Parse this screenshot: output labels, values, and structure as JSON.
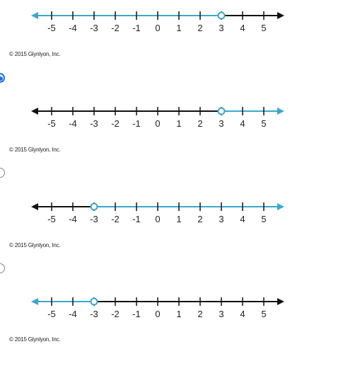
{
  "question": {
    "options": [
      {
        "selected": false,
        "show_radio": false,
        "copyright": "© 2015 Glynlyon, Inc.",
        "number_line": {
          "ticks": [
            "-5",
            "-4",
            "-3",
            "-2",
            "-1",
            "0",
            "1",
            "2",
            "3",
            "4",
            "5"
          ],
          "open_point": 3,
          "shaded_direction": "left",
          "shade_color": "#3aa8cc",
          "line_color": "#111111"
        }
      },
      {
        "selected": true,
        "show_radio": true,
        "copyright": "© 2015 Glynlyon, Inc.",
        "number_line": {
          "ticks": [
            "-5",
            "-4",
            "-3",
            "-2",
            "-1",
            "0",
            "1",
            "2",
            "3",
            "4",
            "5"
          ],
          "open_point": 3,
          "shaded_direction": "right",
          "shade_color": "#3aa8cc",
          "line_color": "#111111"
        }
      },
      {
        "selected": false,
        "show_radio": true,
        "copyright": "© 2015 Glynlyon, Inc.",
        "number_line": {
          "ticks": [
            "-5",
            "-4",
            "-3",
            "-2",
            "-1",
            "0",
            "1",
            "2",
            "3",
            "4",
            "5"
          ],
          "open_point": -3,
          "shaded_direction": "right",
          "shade_color": "#3aa8cc",
          "line_color": "#111111"
        }
      },
      {
        "selected": false,
        "show_radio": true,
        "copyright": "© 2015 Glynlyon, Inc.",
        "number_line": {
          "ticks": [
            "-5",
            "-4",
            "-3",
            "-2",
            "-1",
            "0",
            "1",
            "2",
            "3",
            "4",
            "5"
          ],
          "open_point": -3,
          "shaded_direction": "left",
          "shade_color": "#3aa8cc",
          "line_color": "#111111"
        }
      }
    ]
  }
}
